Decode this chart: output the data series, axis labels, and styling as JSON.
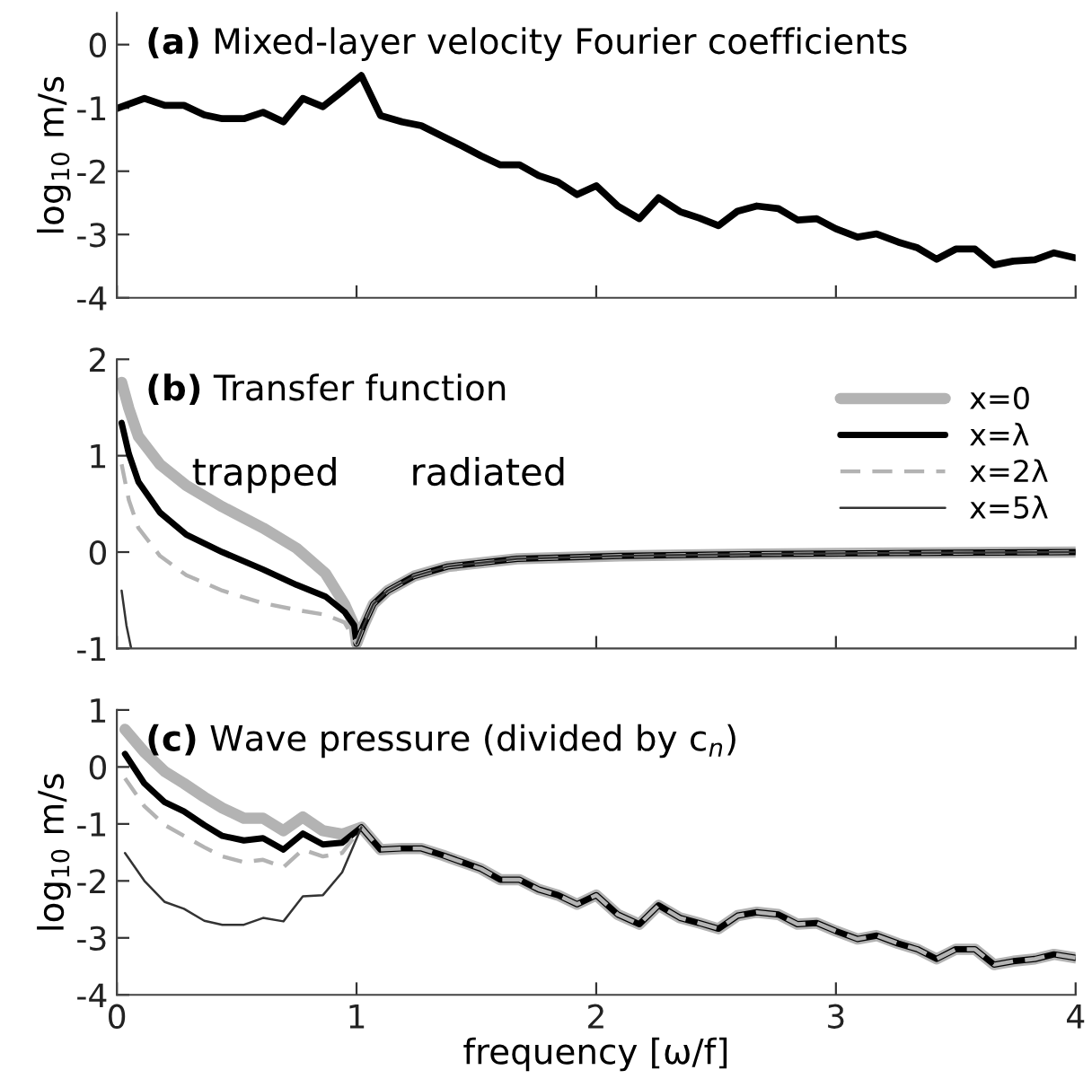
{
  "chart_data": [
    {
      "type": "line",
      "title": "(a) Mixed-layer velocity Fourier coefficients",
      "ylabel": "log$_{10}$ m/s",
      "xlim": [
        0,
        4
      ],
      "xticks": [
        0,
        1,
        2,
        3,
        4
      ],
      "ylim": [
        -4,
        0.5
      ],
      "yticks": [
        -4,
        -3,
        -2,
        -1,
        0
      ],
      "tick_labels": "y",
      "grid": false,
      "legend": false,
      "series": [
        {
          "color": "#000000",
          "x": [
            0,
            0.115,
            0.2,
            0.28,
            0.365,
            0.44,
            0.53,
            0.61,
            0.695,
            0.776,
            0.86,
            0.94,
            1.02,
            1.1,
            1.19,
            1.27,
            1.36,
            1.44,
            1.52,
            1.6,
            1.68,
            1.76,
            1.84,
            1.92,
            2.0,
            2.09,
            2.18,
            2.26,
            2.35,
            2.43,
            2.51,
            2.59,
            2.67,
            2.76,
            2.84,
            2.92,
            3.0,
            3.09,
            3.17,
            3.26,
            3.34,
            3.42,
            3.5,
            3.58,
            3.66,
            3.74,
            3.83,
            3.91,
            4.0
          ],
          "values": [
            -1.01,
            -0.85,
            -0.96,
            -0.96,
            -1.11,
            -1.17,
            -1.17,
            -1.07,
            -1.22,
            -0.85,
            -0.98,
            -0.74,
            -0.49,
            -1.12,
            -1.22,
            -1.28,
            -1.45,
            -1.6,
            -1.76,
            -1.9,
            -1.9,
            -2.07,
            -2.17,
            -2.37,
            -2.23,
            -2.55,
            -2.75,
            -2.42,
            -2.64,
            -2.74,
            -2.86,
            -2.63,
            -2.55,
            -2.59,
            -2.77,
            -2.75,
            -2.91,
            -3.04,
            -2.99,
            -3.12,
            -3.21,
            -3.39,
            -3.23,
            -3.23,
            -3.48,
            -3.42,
            -3.4,
            -3.29,
            -3.37
          ]
        }
      ]
    },
    {
      "type": "line",
      "title": "(b) Transfer function",
      "xlim": [
        0,
        4
      ],
      "xticks": [
        0,
        1,
        2,
        3,
        4
      ],
      "ylim": [
        -1,
        2
      ],
      "yticks": [
        -1,
        0,
        1,
        2
      ],
      "tick_labels": "y",
      "grid": false,
      "legend": "top right",
      "annotations": [
        "trapped",
        "radiated"
      ],
      "series": [
        {
          "name": "x=0",
          "color": "#b3b3b3",
          "line_style": "solid",
          "x": [
            0.02,
            0.05,
            0.09,
            0.18,
            0.29,
            0.44,
            0.61,
            0.75,
            0.87,
            0.95,
            0.99,
            1.0,
            1.03,
            1.07,
            1.13,
            1.24,
            1.38,
            1.67,
            2.1,
            2.68,
            3.25,
            4.0
          ],
          "values": [
            1.76,
            1.49,
            1.2,
            0.91,
            0.69,
            0.47,
            0.25,
            0.04,
            -0.22,
            -0.54,
            -0.76,
            -0.95,
            -0.76,
            -0.54,
            -0.4,
            -0.25,
            -0.15,
            -0.07,
            -0.04,
            -0.02,
            -0.01,
            0
          ]
        },
        {
          "name": "x=λ",
          "color": "#000000",
          "line_style": "solid",
          "x": [
            0.02,
            0.05,
            0.09,
            0.18,
            0.29,
            0.44,
            0.61,
            0.75,
            0.87,
            0.95,
            0.99,
            1.0,
            1.03,
            1.07,
            1.13,
            1.24,
            1.38,
            1.67,
            2.1,
            2.68,
            3.25,
            4.0
          ],
          "values": [
            1.34,
            1.02,
            0.73,
            0.41,
            0.18,
            0.0,
            -0.18,
            -0.34,
            -0.46,
            -0.62,
            -0.76,
            -0.95,
            -0.76,
            -0.54,
            -0.4,
            -0.25,
            -0.15,
            -0.07,
            -0.04,
            -0.02,
            -0.01,
            0
          ]
        },
        {
          "name": "x=2λ",
          "color": "#b3b3b3",
          "line_style": "dashed",
          "x": [
            0.02,
            0.05,
            0.09,
            0.18,
            0.29,
            0.44,
            0.61,
            0.75,
            0.87,
            0.95,
            1.0,
            1.03,
            1.07,
            1.13,
            1.24,
            1.38,
            1.67,
            2.1,
            2.68,
            3.25,
            4.0
          ],
          "values": [
            0.91,
            0.54,
            0.25,
            -0.04,
            -0.24,
            -0.4,
            -0.53,
            -0.6,
            -0.65,
            -0.73,
            -0.95,
            -0.76,
            -0.54,
            -0.4,
            -0.25,
            -0.15,
            -0.07,
            -0.04,
            -0.02,
            -0.01,
            0
          ]
        },
        {
          "name": "x=5λ",
          "color": "#333333",
          "line_style": "solid",
          "x": [
            0.02,
            0.04,
            0.06,
            0.5,
            1.0,
            1.03,
            1.07,
            1.13,
            1.24,
            1.38,
            1.67,
            2.1,
            2.68,
            3.25,
            4.0
          ],
          "values": [
            -0.4,
            -0.76,
            -1.0,
            null,
            -0.95,
            -0.76,
            -0.54,
            -0.4,
            -0.25,
            -0.15,
            -0.07,
            -0.04,
            -0.02,
            -0.01,
            0
          ]
        }
      ]
    },
    {
      "type": "line",
      "title": "(c) Wave pressure (divided by c$_{n}$)",
      "xlabel": "frequency [ω/f]",
      "ylabel": "log$_{10}$ m/s",
      "xlim": [
        0,
        4
      ],
      "xticks": [
        0,
        1,
        2,
        3,
        4
      ],
      "ylim": [
        -4,
        1
      ],
      "yticks": [
        -4,
        -3,
        -2,
        -1,
        0,
        1
      ],
      "grid": false,
      "legend": false,
      "series": [
        {
          "color": "#b3b3b3",
          "line_style": "solid",
          "x": [
            0.034,
            0.115,
            0.2,
            0.28,
            0.365,
            0.44,
            0.53,
            0.61,
            0.695,
            0.776,
            0.86,
            0.94,
            1.02,
            1.1,
            1.19,
            1.27,
            1.36,
            1.44,
            1.52,
            1.6,
            1.68,
            1.76,
            1.84,
            1.92,
            2.0,
            2.09,
            2.18,
            2.26,
            2.35,
            2.43,
            2.51,
            2.59,
            2.67,
            2.76,
            2.84,
            2.92,
            3.0,
            3.09,
            3.17,
            3.26,
            3.34,
            3.42,
            3.5,
            3.58,
            3.66,
            3.74,
            3.83,
            3.91,
            4.0
          ],
          "values": [
            0.66,
            0.26,
            -0.08,
            -0.29,
            -0.53,
            -0.72,
            -0.9,
            -0.9,
            -1.12,
            -0.88,
            -1.12,
            -1.18,
            -1.06,
            -1.45,
            -1.43,
            -1.43,
            -1.55,
            -1.67,
            -1.79,
            -1.98,
            -1.98,
            -2.15,
            -2.25,
            -2.41,
            -2.25,
            -2.59,
            -2.76,
            -2.43,
            -2.65,
            -2.74,
            -2.84,
            -2.61,
            -2.55,
            -2.59,
            -2.76,
            -2.74,
            -2.88,
            -3.02,
            -2.96,
            -3.1,
            -3.2,
            -3.37,
            -3.2,
            -3.2,
            -3.47,
            -3.41,
            -3.37,
            -3.29,
            -3.35
          ]
        },
        {
          "color": "#000000",
          "line_style": "solid",
          "x": [
            0.034,
            0.115,
            0.2,
            0.28,
            0.365,
            0.44,
            0.53,
            0.61,
            0.695,
            0.776,
            0.86,
            0.94,
            1.02,
            1.1,
            1.19,
            1.27,
            1.36,
            1.44,
            1.52,
            1.6,
            1.68,
            1.76,
            1.84,
            1.92,
            2.0,
            2.09,
            2.18,
            2.26,
            2.35,
            2.43,
            2.51,
            2.59,
            2.67,
            2.76,
            2.84,
            2.92,
            3.0,
            3.09,
            3.17,
            3.26,
            3.34,
            3.42,
            3.5,
            3.58,
            3.66,
            3.74,
            3.83,
            3.91,
            4.0
          ],
          "values": [
            0.23,
            -0.29,
            -0.62,
            -0.78,
            -1.02,
            -1.21,
            -1.29,
            -1.25,
            -1.45,
            -1.17,
            -1.36,
            -1.33,
            -1.06,
            -1.45,
            -1.43,
            -1.43,
            -1.55,
            -1.67,
            -1.79,
            -1.98,
            -1.98,
            -2.15,
            -2.25,
            -2.41,
            -2.25,
            -2.59,
            -2.76,
            -2.43,
            -2.65,
            -2.74,
            -2.84,
            -2.61,
            -2.55,
            -2.59,
            -2.76,
            -2.74,
            -2.88,
            -3.02,
            -2.96,
            -3.1,
            -3.2,
            -3.37,
            -3.2,
            -3.2,
            -3.47,
            -3.41,
            -3.37,
            -3.29,
            -3.35
          ]
        },
        {
          "color": "#b3b3b3",
          "line_style": "dashed",
          "x": [
            0.034,
            0.115,
            0.2,
            0.28,
            0.365,
            0.44,
            0.53,
            0.61,
            0.695,
            0.776,
            0.86,
            0.94,
            1.02,
            1.1,
            1.19,
            1.27,
            1.36,
            1.44,
            1.52,
            1.6,
            1.68,
            1.76,
            1.84,
            1.92,
            2.0,
            2.09,
            2.18,
            2.26,
            2.35,
            2.43,
            2.51,
            2.59,
            2.67,
            2.76,
            2.84,
            2.92,
            3.0,
            3.09,
            3.17,
            3.26,
            3.34,
            3.42,
            3.5,
            3.58,
            3.66,
            3.74,
            3.83,
            3.91,
            4.0
          ],
          "values": [
            -0.2,
            -0.69,
            -1.02,
            -1.21,
            -1.41,
            -1.57,
            -1.67,
            -1.63,
            -1.76,
            -1.45,
            -1.57,
            -1.51,
            -1.06,
            -1.45,
            -1.43,
            -1.43,
            -1.55,
            -1.67,
            -1.79,
            -1.98,
            -1.98,
            -2.15,
            -2.25,
            -2.41,
            -2.25,
            -2.59,
            -2.76,
            -2.43,
            -2.65,
            -2.74,
            -2.84,
            -2.61,
            -2.55,
            -2.59,
            -2.76,
            -2.74,
            -2.88,
            -3.02,
            -2.96,
            -3.1,
            -3.2,
            -3.37,
            -3.2,
            -3.2,
            -3.47,
            -3.41,
            -3.37,
            -3.29,
            -3.35
          ]
        },
        {
          "color": "#333333",
          "line_style": "solid",
          "x": [
            0.034,
            0.115,
            0.2,
            0.28,
            0.365,
            0.44,
            0.53,
            0.61,
            0.695,
            0.776,
            0.86,
            0.94,
            1.02
          ],
          "values": [
            -1.51,
            -2.0,
            -2.37,
            -2.49,
            -2.7,
            -2.77,
            -2.77,
            -2.65,
            -2.71,
            -2.27,
            -2.25,
            -1.85,
            -1.06
          ]
        }
      ]
    }
  ]
}
